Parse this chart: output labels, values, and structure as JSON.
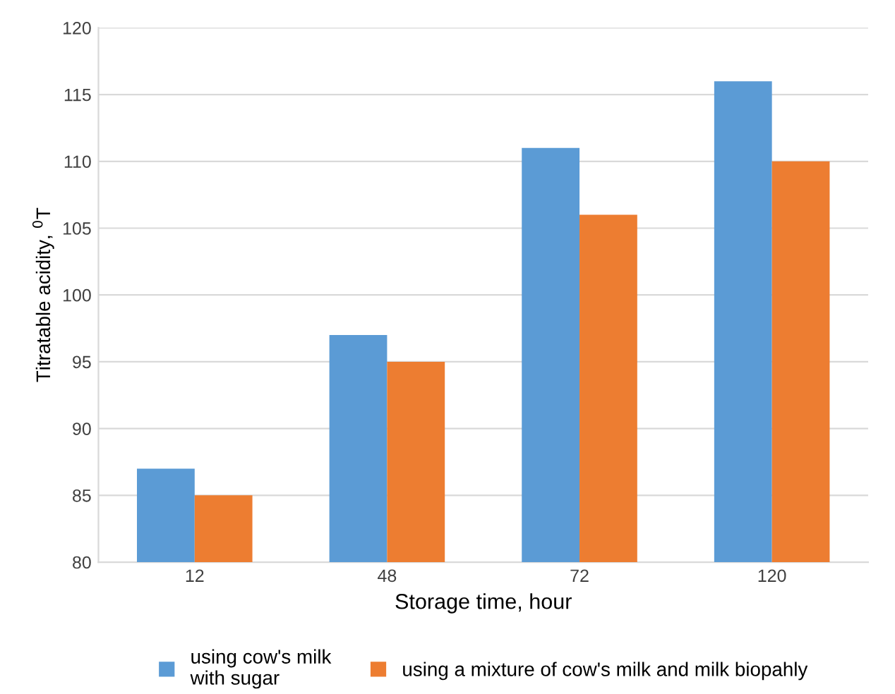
{
  "chart_data": {
    "type": "bar",
    "xlabel": "Storage time, hour",
    "ylabel": "Titratable acidity, $^{0}$T",
    "categories": [
      "12",
      "48",
      "72",
      "120"
    ],
    "series": [
      {
        "name": "using cow's milk\nwith sugar",
        "color": "#5b9bd5",
        "values": [
          87,
          97,
          111,
          116
        ]
      },
      {
        "name": "using a mixture of cow's milk and milk biopahly",
        "color": "#ed7d31",
        "values": [
          85,
          95,
          106,
          110
        ]
      }
    ],
    "ylim": [
      80,
      120
    ],
    "yticks": [
      80,
      85,
      90,
      95,
      100,
      105,
      110,
      115,
      120
    ],
    "grid": "y",
    "legend": "bottom"
  }
}
